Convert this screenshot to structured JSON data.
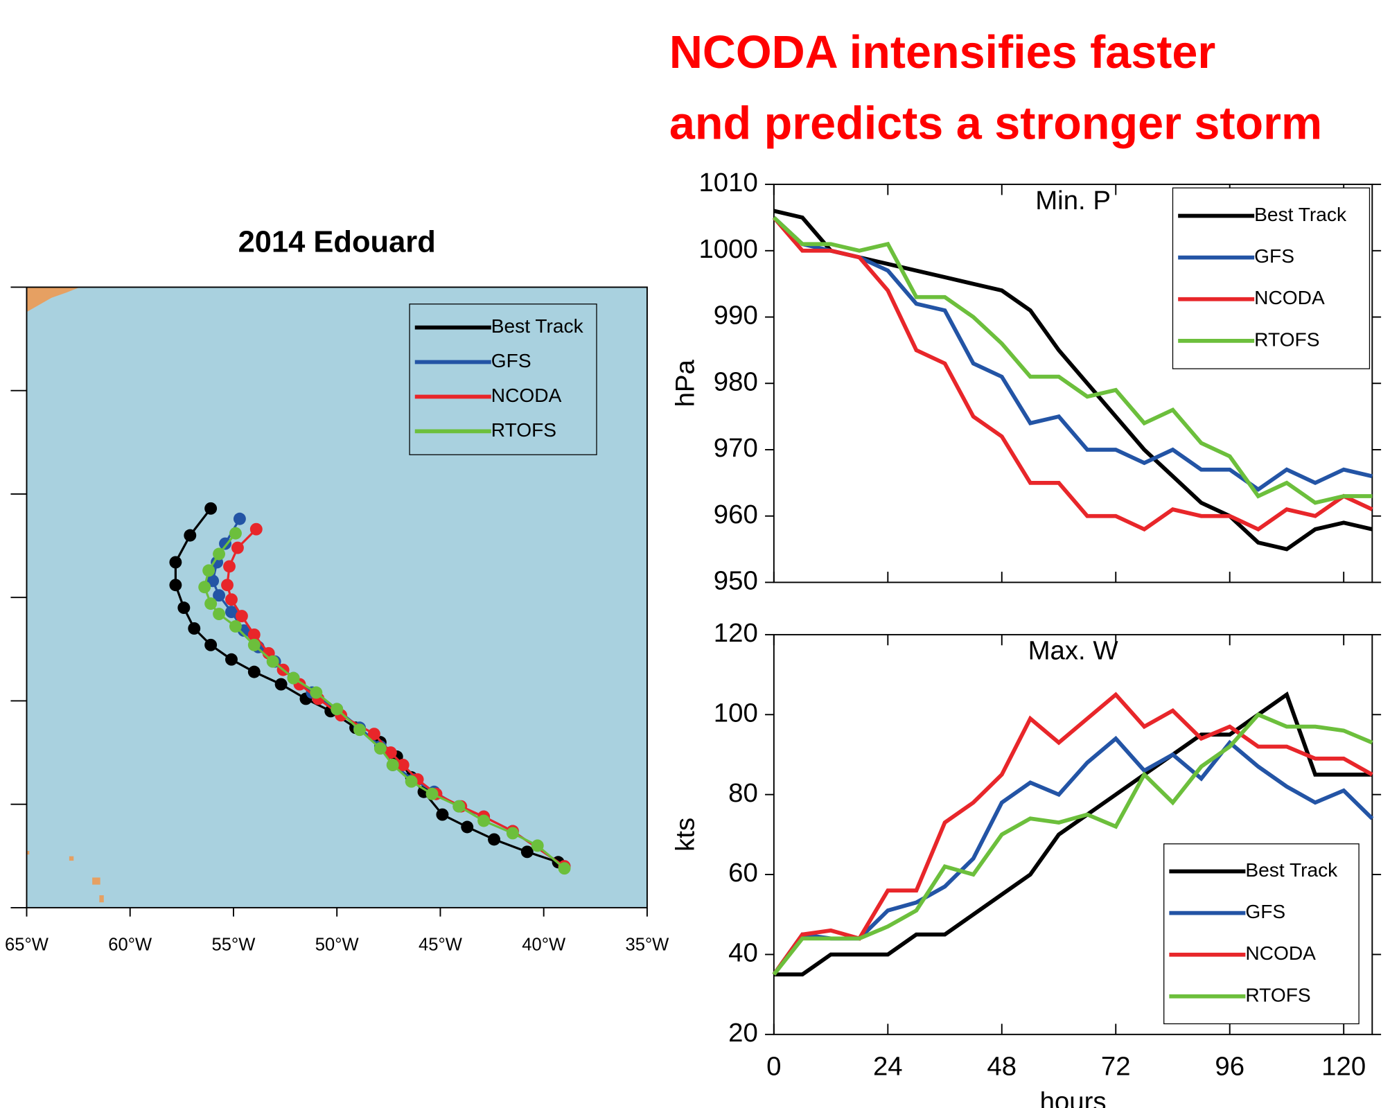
{
  "headline": [
    "NCODA intensifies faster",
    "and predicts a stronger storm"
  ],
  "chart_data": [
    {
      "type": "track",
      "title": "2014 Edouard",
      "xlim": [
        -65,
        -35
      ],
      "ylim": [
        15,
        45
      ],
      "xticks": [
        {
          "value": -65,
          "label": "65°W"
        },
        {
          "value": -60,
          "label": "60°W"
        },
        {
          "value": -55,
          "label": "55°W"
        },
        {
          "value": -50,
          "label": "50°W"
        },
        {
          "value": -45,
          "label": "45°W"
        },
        {
          "value": -40,
          "label": "40°W"
        },
        {
          "value": -35,
          "label": "35°W"
        }
      ],
      "yticks": [
        15,
        20,
        25,
        30,
        35,
        40,
        45
      ],
      "ytick_labels": false,
      "background": "#a9d1df",
      "legend": "upper right",
      "series": [
        {
          "name": "Best Track",
          "color": "#000000",
          "x": [
            -39.3,
            -40.8,
            -42.4,
            -43.7,
            -44.9,
            -45.8,
            -46.4,
            -47.1,
            -47.9,
            -49.1,
            -50.3,
            -51.5,
            -52.7,
            -54.0,
            -55.1,
            -56.1,
            -56.9,
            -57.4,
            -57.8,
            -57.8,
            -57.1,
            -56.1
          ],
          "y": [
            17.2,
            17.7,
            18.3,
            18.9,
            19.5,
            20.6,
            21.3,
            22.3,
            23.0,
            23.7,
            24.5,
            25.1,
            25.8,
            26.4,
            27.0,
            27.7,
            28.5,
            29.5,
            30.6,
            31.7,
            33.0,
            34.3
          ]
        },
        {
          "name": "GFS",
          "color": "#2354a5",
          "x": [
            -39.0,
            -41.5,
            -42.9,
            -44.1,
            -45.3,
            -46.3,
            -47.3,
            -47.9,
            -48.9,
            -50.0,
            -51.2,
            -52.1,
            -53.0,
            -53.8,
            -54.5,
            -55.1,
            -55.7,
            -56.0,
            -55.8,
            -55.4,
            -54.7
          ],
          "y": [
            17.0,
            18.7,
            19.4,
            19.9,
            20.6,
            21.2,
            21.9,
            22.8,
            23.7,
            24.6,
            25.4,
            26.1,
            26.9,
            27.6,
            28.4,
            29.3,
            30.1,
            30.8,
            31.7,
            32.6,
            33.8
          ]
        },
        {
          "name": "NCODA",
          "color": "#e8262a",
          "x": [
            -39.0,
            -41.5,
            -42.9,
            -44.0,
            -45.2,
            -46.1,
            -46.8,
            -47.4,
            -48.2,
            -49.8,
            -50.9,
            -51.8,
            -52.6,
            -53.3,
            -54.0,
            -54.6,
            -55.1,
            -55.3,
            -55.2,
            -54.8,
            -53.9
          ],
          "y": [
            17.0,
            18.7,
            19.4,
            19.9,
            20.5,
            21.2,
            21.9,
            22.5,
            23.4,
            24.3,
            25.1,
            25.8,
            26.5,
            27.3,
            28.2,
            29.1,
            29.9,
            30.6,
            31.5,
            32.4,
            33.3
          ]
        },
        {
          "name": "RTOFS",
          "color": "#6cbf3c",
          "x": [
            -39.0,
            -40.3,
            -41.5,
            -42.9,
            -44.1,
            -45.4,
            -46.4,
            -47.3,
            -47.9,
            -48.9,
            -50.0,
            -51.0,
            -52.1,
            -53.1,
            -54.0,
            -54.9,
            -55.7,
            -56.1,
            -56.4,
            -56.2,
            -55.7,
            -54.9
          ],
          "y": [
            16.9,
            18.0,
            18.6,
            19.2,
            19.9,
            20.5,
            21.1,
            21.9,
            22.7,
            23.6,
            24.6,
            25.4,
            26.1,
            26.9,
            27.7,
            28.6,
            29.2,
            29.7,
            30.5,
            31.3,
            32.1,
            33.1
          ]
        }
      ]
    },
    {
      "type": "line",
      "title": "Min. P",
      "ylabel": "hPa",
      "x": [
        0,
        6,
        12,
        18,
        24,
        30,
        36,
        42,
        48,
        54,
        60,
        66,
        72,
        78,
        84,
        90,
        96,
        102,
        108,
        114,
        120,
        126
      ],
      "xlim": [
        0,
        126
      ],
      "xticks": [
        0,
        24,
        48,
        72,
        96,
        120
      ],
      "xtick_labels": false,
      "ylim": [
        950,
        1010
      ],
      "yticks": [
        950,
        960,
        970,
        980,
        990,
        1000,
        1010
      ],
      "legend": "upper right",
      "series": [
        {
          "name": "Best Track",
          "color": "#000000",
          "values": [
            1006,
            1005,
            1000,
            999,
            998,
            997,
            996,
            995,
            994,
            991,
            985,
            980,
            975,
            970,
            966,
            962,
            960,
            956,
            955,
            958,
            959,
            958
          ]
        },
        {
          "name": "GFS",
          "color": "#2354a5",
          "values": [
            1005,
            1001,
            1000,
            999,
            997,
            992,
            991,
            983,
            981,
            974,
            975,
            970,
            970,
            968,
            970,
            967,
            967,
            964,
            967,
            965,
            967,
            966
          ]
        },
        {
          "name": "NCODA",
          "color": "#e8262a",
          "values": [
            1005,
            1000,
            1000,
            999,
            994,
            985,
            983,
            975,
            972,
            965,
            965,
            960,
            960,
            958,
            961,
            960,
            960,
            958,
            961,
            960,
            963,
            961
          ]
        },
        {
          "name": "RTOFS",
          "color": "#6cbf3c",
          "values": [
            1005,
            1001,
            1001,
            1000,
            1001,
            993,
            993,
            990,
            986,
            981,
            981,
            978,
            979,
            974,
            976,
            971,
            969,
            963,
            965,
            962,
            963,
            963
          ]
        }
      ]
    },
    {
      "type": "line",
      "title": "Max. W",
      "ylabel": "kts",
      "xlabel": "hours",
      "x": [
        0,
        6,
        12,
        18,
        24,
        30,
        36,
        42,
        48,
        54,
        60,
        66,
        72,
        78,
        84,
        90,
        96,
        102,
        108,
        114,
        120,
        126
      ],
      "xlim": [
        0,
        126
      ],
      "xticks": [
        0,
        24,
        48,
        72,
        96,
        120
      ],
      "ylim": [
        20,
        120
      ],
      "yticks": [
        20,
        40,
        60,
        80,
        100,
        120
      ],
      "legend": "lower right",
      "series": [
        {
          "name": "Best Track",
          "color": "#000000",
          "values": [
            35,
            35,
            40,
            40,
            40,
            45,
            45,
            50,
            55,
            60,
            70,
            75,
            80,
            85,
            90,
            95,
            95,
            100,
            105,
            85,
            85,
            85
          ]
        },
        {
          "name": "GFS",
          "color": "#2354a5",
          "values": [
            35,
            45,
            44,
            44,
            51,
            53,
            57,
            64,
            78,
            83,
            80,
            88,
            94,
            86,
            90,
            84,
            93,
            87,
            82,
            78,
            81,
            74
          ]
        },
        {
          "name": "NCODA",
          "color": "#e8262a",
          "values": [
            35,
            45,
            46,
            44,
            56,
            56,
            73,
            78,
            85,
            99,
            93,
            99,
            105,
            97,
            101,
            94,
            97,
            92,
            92,
            89,
            89,
            85
          ]
        },
        {
          "name": "RTOFS",
          "color": "#6cbf3c",
          "values": [
            35,
            44,
            44,
            44,
            47,
            51,
            62,
            60,
            70,
            74,
            73,
            75,
            72,
            85,
            78,
            87,
            92,
            100,
            97,
            97,
            96,
            93
          ]
        }
      ]
    }
  ]
}
